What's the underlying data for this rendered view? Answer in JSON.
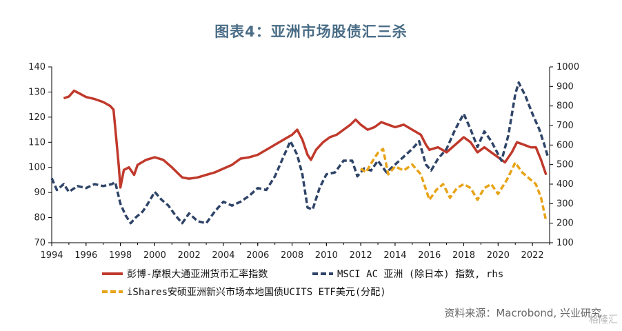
{
  "title": "图表4：亚洲市场股债汇三杀",
  "source": "资料来源：Macrobond, 兴业研究",
  "watermark": "格隆汇",
  "colors": {
    "bloomberg": "#c0392b",
    "msci": "#2f4468",
    "ishares": "#e8a317",
    "axis": "#000000"
  },
  "chart_data": {
    "type": "line",
    "x_ticks": [
      "1994",
      "1996",
      "1998",
      "2000",
      "2002",
      "2004",
      "2006",
      "2008",
      "2010",
      "2012",
      "2014",
      "2016",
      "2018",
      "2020",
      "2022"
    ],
    "xlim": [
      1994,
      2023
    ],
    "left_axis": {
      "ticks": [
        70,
        80,
        90,
        100,
        110,
        120,
        130,
        140
      ],
      "ylim": [
        70,
        140
      ]
    },
    "right_axis": {
      "ticks": [
        100,
        200,
        300,
        400,
        500,
        600,
        700,
        800,
        900,
        1000
      ],
      "ylim": [
        100,
        1000
      ],
      "label": "rhs"
    },
    "legend": [
      {
        "name": "彭博-摩根大通亚洲货币汇率指数"
      },
      {
        "name": "MSCI AC 亚洲 (除日本) 指数, rhs"
      },
      {
        "name": "iShares安硕亚洲新兴市场本地国债UCITS ETF美元(分配)"
      }
    ],
    "series": [
      {
        "name": "彭博-摩根大通亚洲货币汇率指数",
        "axis": "left",
        "style": "solid",
        "color_key": "bloomberg",
        "points": [
          [
            1994.7,
            127.5
          ],
          [
            1995.0,
            128.2
          ],
          [
            1995.3,
            130.5
          ],
          [
            1995.6,
            129.5
          ],
          [
            1996.0,
            128.0
          ],
          [
            1996.5,
            127.2
          ],
          [
            1997.0,
            126.0
          ],
          [
            1997.4,
            124.5
          ],
          [
            1997.6,
            123.0
          ],
          [
            1997.75,
            112
          ],
          [
            1997.9,
            101
          ],
          [
            1998.0,
            92
          ],
          [
            1998.2,
            99
          ],
          [
            1998.5,
            100
          ],
          [
            1998.8,
            97
          ],
          [
            1999.0,
            101
          ],
          [
            1999.5,
            103
          ],
          [
            2000.0,
            104
          ],
          [
            2000.5,
            103
          ],
          [
            2001.0,
            100
          ],
          [
            2001.3,
            98
          ],
          [
            2001.6,
            96
          ],
          [
            2002.0,
            95.5
          ],
          [
            2002.5,
            96
          ],
          [
            2003.0,
            97
          ],
          [
            2003.5,
            98
          ],
          [
            2004.0,
            99.5
          ],
          [
            2004.5,
            101
          ],
          [
            2005.0,
            103.5
          ],
          [
            2005.5,
            104
          ],
          [
            2006.0,
            105
          ],
          [
            2006.5,
            107
          ],
          [
            2007.0,
            109
          ],
          [
            2007.5,
            111
          ],
          [
            2008.0,
            113
          ],
          [
            2008.3,
            115
          ],
          [
            2008.6,
            111
          ],
          [
            2008.9,
            105
          ],
          [
            2009.1,
            103
          ],
          [
            2009.4,
            107
          ],
          [
            2009.8,
            110
          ],
          [
            2010.2,
            112
          ],
          [
            2010.6,
            113
          ],
          [
            2011.0,
            115
          ],
          [
            2011.4,
            117
          ],
          [
            2011.7,
            119
          ],
          [
            2012.0,
            117
          ],
          [
            2012.4,
            115
          ],
          [
            2012.8,
            116
          ],
          [
            2013.2,
            118
          ],
          [
            2013.6,
            117
          ],
          [
            2014.0,
            116
          ],
          [
            2014.5,
            117
          ],
          [
            2015.0,
            115
          ],
          [
            2015.5,
            113
          ],
          [
            2015.8,
            109
          ],
          [
            2016.0,
            107
          ],
          [
            2016.5,
            108
          ],
          [
            2017.0,
            106
          ],
          [
            2017.5,
            109
          ],
          [
            2018.0,
            112
          ],
          [
            2018.4,
            110
          ],
          [
            2018.8,
            106
          ],
          [
            2019.2,
            108
          ],
          [
            2019.6,
            106
          ],
          [
            2020.0,
            104
          ],
          [
            2020.4,
            102
          ],
          [
            2020.8,
            106
          ],
          [
            2021.1,
            110
          ],
          [
            2021.5,
            109
          ],
          [
            2021.9,
            108
          ],
          [
            2022.2,
            108
          ],
          [
            2022.5,
            103
          ],
          [
            2022.8,
            97
          ]
        ]
      },
      {
        "name": "MSCI AC 亚洲 (除日本) 指数, rhs",
        "axis": "right",
        "style": "dashed",
        "color_key": "msci",
        "points": [
          [
            1994.0,
            430
          ],
          [
            1994.3,
            370
          ],
          [
            1994.7,
            400
          ],
          [
            1995.0,
            360
          ],
          [
            1995.5,
            390
          ],
          [
            1996.0,
            380
          ],
          [
            1996.5,
            400
          ],
          [
            1997.0,
            390
          ],
          [
            1997.5,
            400
          ],
          [
            1997.7,
            410
          ],
          [
            1998.0,
            300
          ],
          [
            1998.3,
            240
          ],
          [
            1998.6,
            200
          ],
          [
            1998.9,
            230
          ],
          [
            1999.3,
            260
          ],
          [
            1999.6,
            300
          ],
          [
            2000.0,
            360
          ],
          [
            2000.4,
            320
          ],
          [
            2000.8,
            290
          ],
          [
            2001.2,
            240
          ],
          [
            2001.6,
            200
          ],
          [
            2002.0,
            250
          ],
          [
            2002.5,
            210
          ],
          [
            2003.0,
            200
          ],
          [
            2003.5,
            260
          ],
          [
            2004.0,
            310
          ],
          [
            2004.5,
            290
          ],
          [
            2005.0,
            310
          ],
          [
            2005.5,
            340
          ],
          [
            2006.0,
            380
          ],
          [
            2006.5,
            370
          ],
          [
            2007.0,
            440
          ],
          [
            2007.5,
            540
          ],
          [
            2007.9,
            620
          ],
          [
            2008.3,
            550
          ],
          [
            2008.6,
            450
          ],
          [
            2008.9,
            280
          ],
          [
            2009.2,
            270
          ],
          [
            2009.6,
            380
          ],
          [
            2010.0,
            450
          ],
          [
            2010.5,
            460
          ],
          [
            2011.0,
            520
          ],
          [
            2011.5,
            520
          ],
          [
            2011.8,
            440
          ],
          [
            2012.2,
            480
          ],
          [
            2012.6,
            470
          ],
          [
            2013.0,
            520
          ],
          [
            2013.5,
            460
          ],
          [
            2014.0,
            500
          ],
          [
            2014.5,
            540
          ],
          [
            2015.0,
            580
          ],
          [
            2015.4,
            620
          ],
          [
            2015.8,
            500
          ],
          [
            2016.1,
            470
          ],
          [
            2016.5,
            530
          ],
          [
            2017.0,
            580
          ],
          [
            2017.5,
            680
          ],
          [
            2018.0,
            760
          ],
          [
            2018.4,
            680
          ],
          [
            2018.8,
            590
          ],
          [
            2019.2,
            670
          ],
          [
            2019.6,
            620
          ],
          [
            2020.2,
            520
          ],
          [
            2020.6,
            650
          ],
          [
            2021.0,
            860
          ],
          [
            2021.2,
            920
          ],
          [
            2021.6,
            850
          ],
          [
            2022.0,
            760
          ],
          [
            2022.4,
            680
          ],
          [
            2022.7,
            600
          ],
          [
            2022.9,
            540
          ]
        ]
      },
      {
        "name": "iShares安硕亚洲新兴市场本地国债UCITS ETF美元(分配)",
        "axis": "right",
        "style": "dashed",
        "color_key": "ishares",
        "points": [
          [
            2012.0,
            480
          ],
          [
            2012.3,
            460
          ],
          [
            2012.7,
            520
          ],
          [
            2013.0,
            560
          ],
          [
            2013.3,
            580
          ],
          [
            2013.6,
            450
          ],
          [
            2014.0,
            490
          ],
          [
            2014.5,
            470
          ],
          [
            2015.0,
            500
          ],
          [
            2015.5,
            450
          ],
          [
            2016.0,
            320
          ],
          [
            2016.4,
            370
          ],
          [
            2016.8,
            400
          ],
          [
            2017.2,
            330
          ],
          [
            2017.6,
            380
          ],
          [
            2018.0,
            400
          ],
          [
            2018.4,
            380
          ],
          [
            2018.8,
            320
          ],
          [
            2019.2,
            380
          ],
          [
            2019.6,
            400
          ],
          [
            2020.0,
            350
          ],
          [
            2020.5,
            420
          ],
          [
            2021.0,
            510
          ],
          [
            2021.4,
            460
          ],
          [
            2021.8,
            430
          ],
          [
            2022.2,
            400
          ],
          [
            2022.5,
            330
          ],
          [
            2022.8,
            210
          ]
        ]
      }
    ]
  }
}
